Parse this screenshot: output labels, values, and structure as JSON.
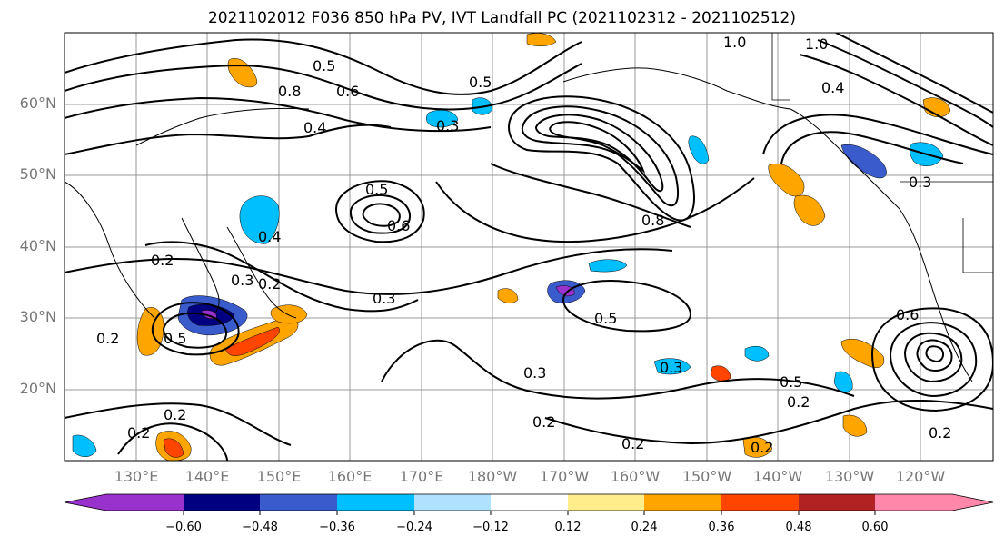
{
  "title": "2021102012 F036 850 hPa PV, IVT Landfall PC (2021102312 - 2021102512)",
  "lat_labels": [
    "60°N",
    "50°N",
    "40°N",
    "30°N",
    "20°N"
  ],
  "lon_labels": [
    "130°E",
    "140°E",
    "150°E",
    "160°E",
    "170°E",
    "180°W",
    "170°W",
    "160°W",
    "150°W",
    "140°W",
    "130°W",
    "120°W"
  ],
  "contour_labels": [
    "1.0",
    "0.5",
    "0.8",
    "0.6",
    "0.4",
    "0.3",
    "0.5",
    "0.6",
    "0.4",
    "0.2",
    "0.3",
    "0.3",
    "0.5",
    "0.5",
    "0.2",
    "0.3",
    "0.2",
    "0.2",
    "0.2",
    "0.2",
    "0.2",
    "0.5",
    "0.6",
    "0.2",
    "0.8",
    "1.0",
    "0.4",
    "0.3",
    "0.2",
    "0.5",
    "0.3",
    "0.2"
  ],
  "colorbar": {
    "ticks": [
      "−0.60",
      "−0.48",
      "−0.36",
      "−0.24",
      "−0.12",
      "0.12",
      "0.24",
      "0.36",
      "0.48",
      "0.60"
    ],
    "colors": [
      "#9932cc",
      "#000080",
      "#3a5bcc",
      "#00bfff",
      "#b0e2ff",
      "#ffffff",
      "#ffec8b",
      "#ffa500",
      "#ff4500",
      "#b22222",
      "#ff88aa"
    ]
  }
}
